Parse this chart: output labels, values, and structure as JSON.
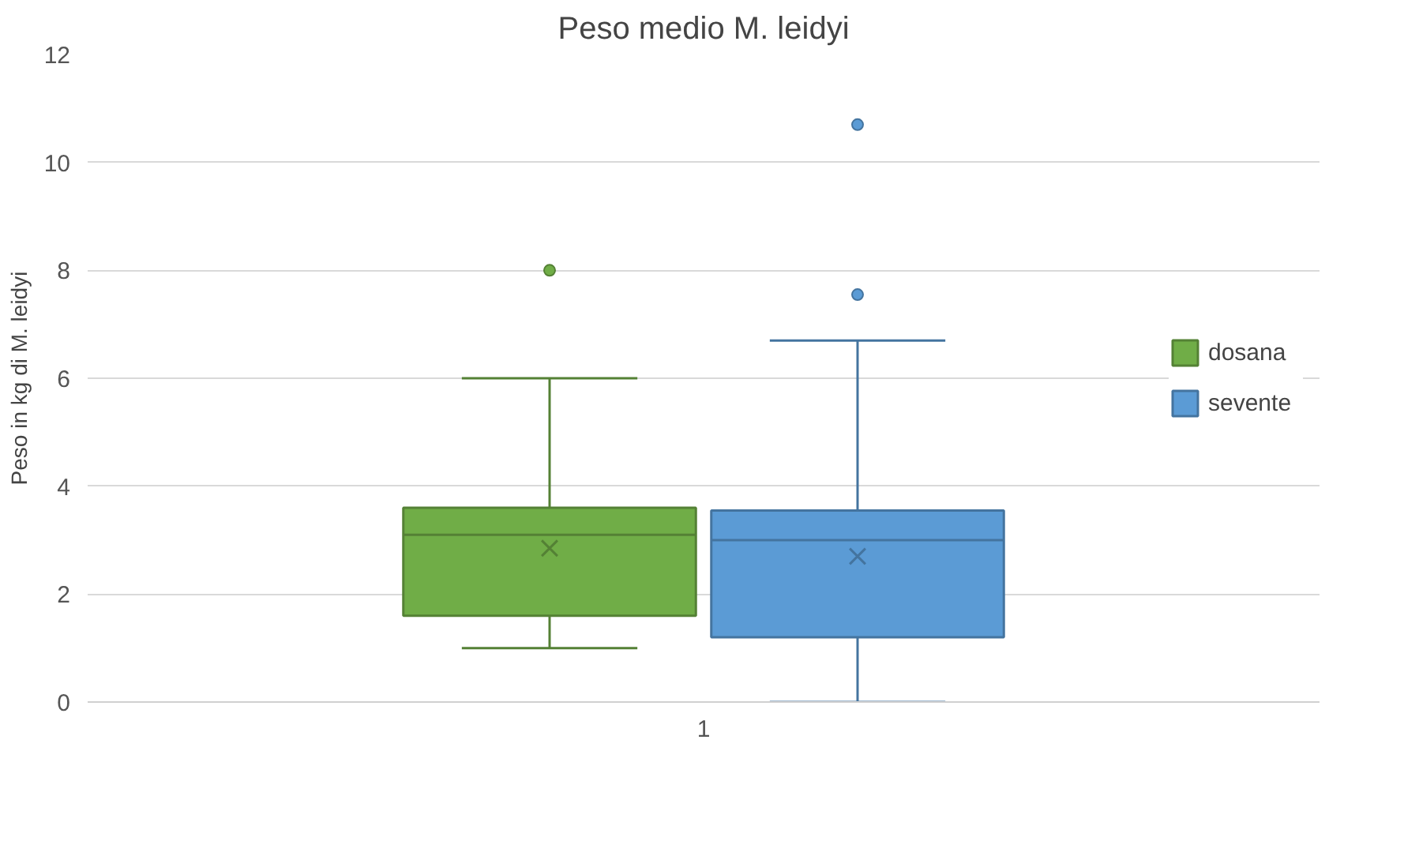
{
  "chart_data": {
    "type": "box",
    "title": "Peso medio M. leidyi",
    "ylabel": "Peso in kg di M. leidyi",
    "categories": [
      "1"
    ],
    "series": [
      {
        "name": "dosana",
        "color": "#70ad47",
        "boxes": [
          {
            "low": 1.0,
            "q1": 1.6,
            "median": 3.1,
            "q3": 3.6,
            "high": 6.0,
            "mean": 2.85,
            "outliers": [
              8.0
            ]
          }
        ]
      },
      {
        "name": "sevente",
        "color": "#5b9bd5",
        "boxes": [
          {
            "low": 0.0,
            "q1": 1.2,
            "median": 3.0,
            "q3": 3.55,
            "high": 6.7,
            "mean": 2.7,
            "outliers": [
              10.7,
              7.55
            ]
          }
        ]
      }
    ],
    "ylim": [
      0,
      12
    ],
    "yticks": [
      0,
      2,
      4,
      6,
      8,
      10,
      12
    ],
    "grid": "y",
    "legend": "right"
  }
}
